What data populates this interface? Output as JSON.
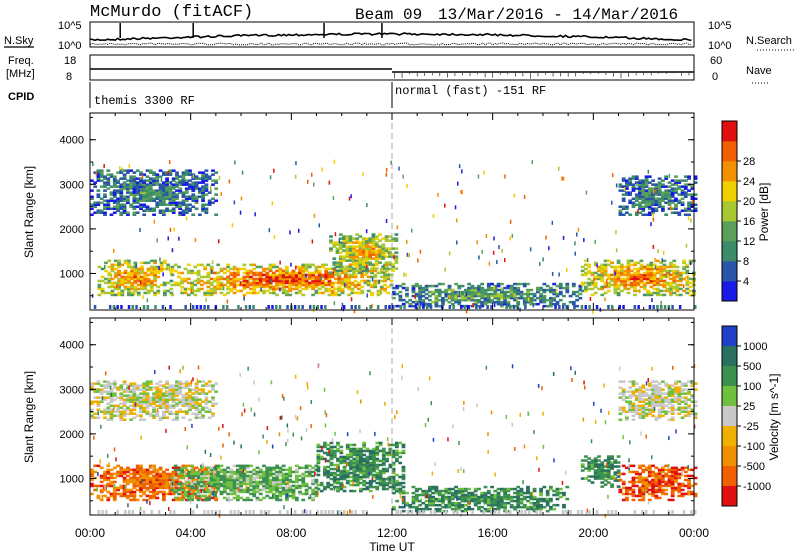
{
  "header": {
    "station": "McMurdo (fitACF)",
    "beam": "Beam 09",
    "date_range": "13/Mar/2016 - 14/Mar/2016"
  },
  "top_panels": {
    "nsky_label": "N.Sky",
    "nsky_ticks": [
      "10^5",
      "10^0"
    ],
    "nsearch_label": "N.Search",
    "nsearch_ticks": [
      "10^5",
      "10^0"
    ],
    "freq_label": "Freq.",
    "freq_unit": "[MHz]",
    "freq_ticks": [
      "18",
      "8"
    ],
    "nave_label": "Nave",
    "nave_ticks": [
      "60",
      "0"
    ],
    "cpid_label": "CPID",
    "cpid_segments": [
      {
        "label": "themis 3300 RF",
        "start_hour": 0,
        "end_hour": 12
      },
      {
        "label": "normal (fast) -151 RF",
        "start_hour": 12,
        "end_hour": 24
      }
    ]
  },
  "x_axis": {
    "label": "Time UT",
    "ticks": [
      "00:00",
      "04:00",
      "08:00",
      "12:00",
      "16:00",
      "20:00",
      "00:00"
    ],
    "range_hours": [
      0,
      24
    ]
  },
  "chart_data": [
    {
      "type": "heatmap",
      "name": "power",
      "ylabel": "Slant Range [km]",
      "ylim": [
        180,
        4600
      ],
      "yticks": [
        "1000",
        "2000",
        "3000",
        "4000"
      ],
      "colorbar_label": "Power [dB]",
      "colorbar_ticks": [
        "4",
        "8",
        "12",
        "16",
        "20",
        "24",
        "28"
      ],
      "colorbar_range": [
        0,
        32
      ],
      "colors": [
        "#1a1ae6",
        "#2a55a8",
        "#3c8c6a",
        "#5aa05a",
        "#a8c832",
        "#f0d000",
        "#f59000",
        "#f06000",
        "#e01010"
      ],
      "echo_regions": [
        {
          "t0": 0.3,
          "t1": 3.2,
          "r0": 500,
          "r1": 1300,
          "level": 0.8
        },
        {
          "t0": 3.2,
          "t1": 12.0,
          "r0": 500,
          "r1": 1200,
          "level": 0.9
        },
        {
          "t0": 9.5,
          "t1": 12.2,
          "r0": 1000,
          "r1": 1900,
          "level": 0.7
        },
        {
          "t0": 0.0,
          "t1": 5.0,
          "r0": 2300,
          "r1": 3300,
          "level": 0.3
        },
        {
          "t0": 12.0,
          "t1": 19.5,
          "r0": 250,
          "r1": 750,
          "level": 0.4
        },
        {
          "t0": 19.5,
          "t1": 24.0,
          "r0": 500,
          "r1": 1300,
          "level": 0.85
        },
        {
          "t0": 21.0,
          "t1": 24.0,
          "r0": 2300,
          "r1": 3200,
          "level": 0.3
        }
      ]
    },
    {
      "type": "heatmap",
      "name": "velocity",
      "ylabel": "Slant Range [km]",
      "ylim": [
        180,
        4600
      ],
      "yticks": [
        "1000",
        "2000",
        "3000",
        "4000"
      ],
      "colorbar_label": "Velocity [m s^-1]",
      "colorbar_ticks": [
        "1000",
        "500",
        "100",
        "25",
        "-25",
        "-100",
        "-500",
        "-1000"
      ],
      "colors": [
        "#2040c8",
        "#2a7060",
        "#3c9050",
        "#70c040",
        "#c8c8c8",
        "#f0b000",
        "#f09000",
        "#f06000",
        "#e01010"
      ],
      "echo_regions": [
        {
          "t0": 0.0,
          "t1": 5.0,
          "r0": 500,
          "r1": 1300,
          "level": -0.6
        },
        {
          "t0": 3.2,
          "t1": 9.0,
          "r0": 500,
          "r1": 1300,
          "level": 0.3
        },
        {
          "t0": 9.0,
          "t1": 12.5,
          "r0": 700,
          "r1": 1800,
          "level": 0.5
        },
        {
          "t0": 0.0,
          "t1": 5.0,
          "r0": 2300,
          "r1": 3200,
          "level": 0.0
        },
        {
          "t0": 12.0,
          "t1": 19.0,
          "r0": 250,
          "r1": 800,
          "level": 0.5
        },
        {
          "t0": 19.5,
          "t1": 21.0,
          "r0": 800,
          "r1": 1500,
          "level": 0.5
        },
        {
          "t0": 21.0,
          "t1": 24.0,
          "r0": 500,
          "r1": 1300,
          "level": -0.7
        },
        {
          "t0": 21.0,
          "t1": 24.0,
          "r0": 2300,
          "r1": 3200,
          "level": 0.0
        }
      ]
    }
  ]
}
